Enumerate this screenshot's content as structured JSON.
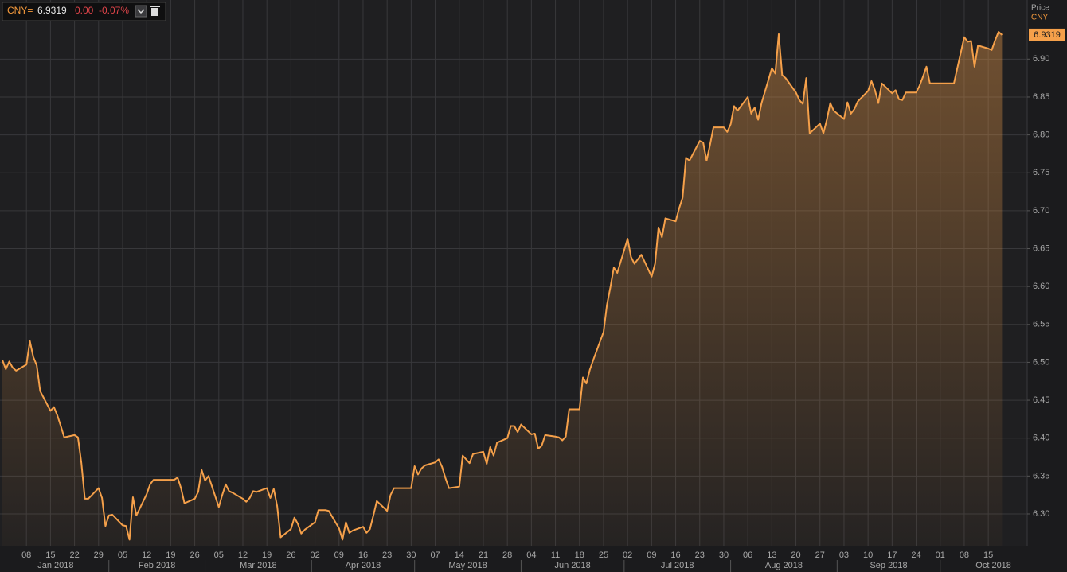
{
  "header": {
    "ric": "CNY=",
    "last": "6.9319",
    "change": "0.00",
    "pct": "-0.07%",
    "axis_title": "Price",
    "currency": "CNY"
  },
  "chart_data": {
    "type": "line",
    "color": "#f5a04a",
    "grid": true,
    "fill": true,
    "xlim": [
      "2018-01-01",
      "2018-10-26"
    ],
    "ylim": [
      6.258,
      6.978
    ],
    "yticks": [
      {
        "value": 6.3,
        "label": "6.30"
      },
      6.35,
      {
        "value": 6.4,
        "label": "6.40"
      },
      6.45,
      {
        "value": 6.5,
        "label": "6.50"
      },
      6.55,
      {
        "value": 6.6,
        "label": "6.60"
      },
      6.65,
      {
        "value": 6.7,
        "label": "6.70"
      },
      6.75,
      {
        "value": 6.8,
        "label": "6.80"
      },
      6.85,
      {
        "value": 6.9,
        "label": "6.90"
      }
    ],
    "xticks": [
      {
        "value": "2018-01-08",
        "label": "08"
      },
      {
        "value": "2018-01-15",
        "label": "15"
      },
      {
        "value": "2018-01-22",
        "label": "22"
      },
      {
        "value": "2018-01-29",
        "label": "29"
      },
      {
        "value": "2018-02-05",
        "label": "05"
      },
      {
        "value": "2018-02-12",
        "label": "12"
      },
      {
        "value": "2018-02-19",
        "label": "19"
      },
      {
        "value": "2018-02-26",
        "label": "26"
      },
      {
        "value": "2018-03-05",
        "label": "05"
      },
      {
        "value": "2018-03-12",
        "label": "12"
      },
      {
        "value": "2018-03-19",
        "label": "19"
      },
      {
        "value": "2018-03-26",
        "label": "26"
      },
      {
        "value": "2018-04-02",
        "label": "02"
      },
      {
        "value": "2018-04-09",
        "label": "09"
      },
      {
        "value": "2018-04-16",
        "label": "16"
      },
      {
        "value": "2018-04-23",
        "label": "23"
      },
      {
        "value": "2018-04-30",
        "label": "30"
      },
      {
        "value": "2018-05-07",
        "label": "07"
      },
      {
        "value": "2018-05-14",
        "label": "14"
      },
      {
        "value": "2018-05-21",
        "label": "21"
      },
      {
        "value": "2018-05-28",
        "label": "28"
      },
      {
        "value": "2018-06-04",
        "label": "04"
      },
      {
        "value": "2018-06-11",
        "label": "11"
      },
      {
        "value": "2018-06-18",
        "label": "18"
      },
      {
        "value": "2018-06-25",
        "label": "25"
      },
      {
        "value": "2018-07-02",
        "label": "02"
      },
      {
        "value": "2018-07-09",
        "label": "09"
      },
      {
        "value": "2018-07-16",
        "label": "16"
      },
      {
        "value": "2018-07-23",
        "label": "23"
      },
      {
        "value": "2018-07-30",
        "label": "30"
      },
      {
        "value": "2018-08-06",
        "label": "06"
      },
      {
        "value": "2018-08-13",
        "label": "13"
      },
      {
        "value": "2018-08-20",
        "label": "20"
      },
      {
        "value": "2018-08-27",
        "label": "27"
      },
      {
        "value": "2018-09-03",
        "label": "03"
      },
      {
        "value": "2018-09-10",
        "label": "10"
      },
      {
        "value": "2018-09-17",
        "label": "17"
      },
      {
        "value": "2018-09-24",
        "label": "24"
      },
      {
        "value": "2018-10-01",
        "label": "01"
      },
      {
        "value": "2018-10-08",
        "label": "08"
      },
      {
        "value": "2018-10-15",
        "label": "15"
      }
    ],
    "months": [
      {
        "value": "2018-01",
        "label": "Jan 2018"
      },
      {
        "value": "2018-02",
        "label": "Feb 2018"
      },
      {
        "value": "2018-03",
        "label": "Mar 2018"
      },
      {
        "value": "2018-04",
        "label": "Apr 2018"
      },
      {
        "value": "2018-05",
        "label": "May 2018"
      },
      {
        "value": "2018-06",
        "label": "Jun 2018"
      },
      {
        "value": "2018-07",
        "label": "Jul 2018"
      },
      {
        "value": "2018-08",
        "label": "Aug 2018"
      },
      {
        "value": "2018-09",
        "label": "Sep 2018"
      },
      {
        "value": "2018-10",
        "label": "Oct 2018"
      }
    ],
    "x": [
      "2018-01-01",
      "2018-01-02",
      "2018-01-03",
      "2018-01-04",
      "2018-01-05",
      "2018-01-08",
      "2018-01-09",
      "2018-01-10",
      "2018-01-11",
      "2018-01-12",
      "2018-01-15",
      "2018-01-16",
      "2018-01-17",
      "2018-01-18",
      "2018-01-19",
      "2018-01-22",
      "2018-01-23",
      "2018-01-24",
      "2018-01-25",
      "2018-01-26",
      "2018-01-29",
      "2018-01-30",
      "2018-01-31",
      "2018-02-01",
      "2018-02-02",
      "2018-02-05",
      "2018-02-06",
      "2018-02-07",
      "2018-02-08",
      "2018-02-09",
      "2018-02-12",
      "2018-02-13",
      "2018-02-14",
      "2018-02-15",
      "2018-02-16",
      "2018-02-19",
      "2018-02-20",
      "2018-02-21",
      "2018-02-22",
      "2018-02-23",
      "2018-02-26",
      "2018-02-27",
      "2018-02-28",
      "2018-03-01",
      "2018-03-02",
      "2018-03-05",
      "2018-03-06",
      "2018-03-07",
      "2018-03-08",
      "2018-03-09",
      "2018-03-12",
      "2018-03-13",
      "2018-03-14",
      "2018-03-15",
      "2018-03-16",
      "2018-03-19",
      "2018-03-20",
      "2018-03-21",
      "2018-03-22",
      "2018-03-23",
      "2018-03-26",
      "2018-03-27",
      "2018-03-28",
      "2018-03-29",
      "2018-03-30",
      "2018-04-02",
      "2018-04-03",
      "2018-04-04",
      "2018-04-05",
      "2018-04-06",
      "2018-04-09",
      "2018-04-10",
      "2018-04-11",
      "2018-04-12",
      "2018-04-13",
      "2018-04-16",
      "2018-04-17",
      "2018-04-18",
      "2018-04-19",
      "2018-04-20",
      "2018-04-23",
      "2018-04-24",
      "2018-04-25",
      "2018-04-26",
      "2018-04-27",
      "2018-04-30",
      "2018-05-01",
      "2018-05-02",
      "2018-05-03",
      "2018-05-04",
      "2018-05-07",
      "2018-05-08",
      "2018-05-09",
      "2018-05-10",
      "2018-05-11",
      "2018-05-14",
      "2018-05-15",
      "2018-05-16",
      "2018-05-17",
      "2018-05-18",
      "2018-05-21",
      "2018-05-22",
      "2018-05-23",
      "2018-05-24",
      "2018-05-25",
      "2018-05-28",
      "2018-05-29",
      "2018-05-30",
      "2018-05-31",
      "2018-06-01",
      "2018-06-04",
      "2018-06-05",
      "2018-06-06",
      "2018-06-07",
      "2018-06-08",
      "2018-06-11",
      "2018-06-12",
      "2018-06-13",
      "2018-06-14",
      "2018-06-15",
      "2018-06-18",
      "2018-06-19",
      "2018-06-20",
      "2018-06-21",
      "2018-06-22",
      "2018-06-25",
      "2018-06-26",
      "2018-06-27",
      "2018-06-28",
      "2018-06-29",
      "2018-07-02",
      "2018-07-03",
      "2018-07-04",
      "2018-07-05",
      "2018-07-06",
      "2018-07-09",
      "2018-07-10",
      "2018-07-11",
      "2018-07-12",
      "2018-07-13",
      "2018-07-16",
      "2018-07-17",
      "2018-07-18",
      "2018-07-19",
      "2018-07-20",
      "2018-07-23",
      "2018-07-24",
      "2018-07-25",
      "2018-07-26",
      "2018-07-27",
      "2018-07-30",
      "2018-07-31",
      "2018-08-01",
      "2018-08-02",
      "2018-08-03",
      "2018-08-06",
      "2018-08-07",
      "2018-08-08",
      "2018-08-09",
      "2018-08-10",
      "2018-08-13",
      "2018-08-14",
      "2018-08-15",
      "2018-08-16",
      "2018-08-17",
      "2018-08-20",
      "2018-08-21",
      "2018-08-22",
      "2018-08-23",
      "2018-08-24",
      "2018-08-27",
      "2018-08-28",
      "2018-08-29",
      "2018-08-30",
      "2018-08-31",
      "2018-09-03",
      "2018-09-04",
      "2018-09-05",
      "2018-09-06",
      "2018-09-07",
      "2018-09-10",
      "2018-09-11",
      "2018-09-12",
      "2018-09-13",
      "2018-09-14",
      "2018-09-17",
      "2018-09-18",
      "2018-09-19",
      "2018-09-20",
      "2018-09-21",
      "2018-09-24",
      "2018-09-25",
      "2018-09-26",
      "2018-09-27",
      "2018-09-28",
      "2018-10-01",
      "2018-10-02",
      "2018-10-03",
      "2018-10-04",
      "2018-10-05",
      "2018-10-08",
      "2018-10-09",
      "2018-10-10",
      "2018-10-11",
      "2018-10-12",
      "2018-10-15",
      "2018-10-16",
      "2018-10-17",
      "2018-10-18",
      "2018-10-19"
    ],
    "series": [
      {
        "name": "CNY=",
        "color": "#f5a04a",
        "values": [
          6.503,
          6.491,
          6.501,
          6.493,
          6.489,
          6.497,
          6.528,
          6.507,
          6.496,
          6.462,
          6.436,
          6.441,
          6.43,
          6.416,
          6.401,
          6.404,
          6.401,
          6.367,
          6.32,
          6.32,
          6.334,
          6.321,
          6.284,
          6.298,
          6.299,
          6.285,
          6.284,
          6.266,
          6.322,
          6.298,
          6.326,
          6.339,
          6.345,
          6.345,
          6.345,
          6.345,
          6.345,
          6.348,
          6.334,
          6.314,
          6.32,
          6.329,
          6.358,
          6.344,
          6.35,
          6.309,
          6.325,
          6.339,
          6.33,
          6.328,
          6.32,
          6.316,
          6.321,
          6.33,
          6.329,
          6.334,
          6.321,
          6.333,
          6.31,
          6.269,
          6.28,
          6.295,
          6.287,
          6.274,
          6.279,
          6.289,
          6.305,
          6.305,
          6.305,
          6.304,
          6.281,
          6.266,
          6.289,
          6.275,
          6.278,
          6.283,
          6.275,
          6.28,
          6.298,
          6.317,
          6.304,
          6.325,
          6.334,
          6.334,
          6.334,
          6.334,
          6.363,
          6.352,
          6.36,
          6.364,
          6.368,
          6.372,
          6.362,
          6.347,
          6.334,
          6.336,
          6.377,
          6.372,
          6.367,
          6.379,
          6.382,
          6.366,
          6.388,
          6.377,
          6.394,
          6.4,
          6.416,
          6.416,
          6.408,
          6.418,
          6.405,
          6.406,
          6.386,
          6.39,
          6.404,
          6.402,
          6.401,
          6.397,
          6.402,
          6.438,
          6.438,
          6.48,
          6.472,
          6.49,
          6.503,
          6.54,
          6.576,
          6.599,
          6.625,
          6.618,
          6.663,
          6.639,
          6.63,
          6.636,
          6.642,
          6.613,
          6.63,
          6.678,
          6.665,
          6.69,
          6.686,
          6.703,
          6.717,
          6.77,
          6.766,
          6.792,
          6.79,
          6.766,
          6.787,
          6.81,
          6.81,
          6.804,
          6.814,
          6.838,
          6.832,
          6.85,
          6.828,
          6.836,
          6.82,
          6.842,
          6.888,
          6.881,
          6.933,
          6.879,
          6.875,
          6.856,
          6.846,
          6.841,
          6.875,
          6.802,
          6.815,
          6.802,
          6.82,
          6.842,
          6.832,
          6.821,
          6.843,
          6.828,
          6.834,
          6.844,
          6.858,
          6.871,
          6.859,
          6.842,
          6.868,
          6.855,
          6.859,
          6.847,
          6.846,
          6.856,
          6.856,
          6.865,
          6.877,
          6.89,
          6.868,
          6.868,
          6.868,
          6.868,
          6.868,
          6.868,
          6.929,
          6.923,
          6.924,
          6.89,
          6.918,
          6.914,
          6.912,
          6.925,
          6.936,
          6.9319
        ]
      }
    ]
  }
}
